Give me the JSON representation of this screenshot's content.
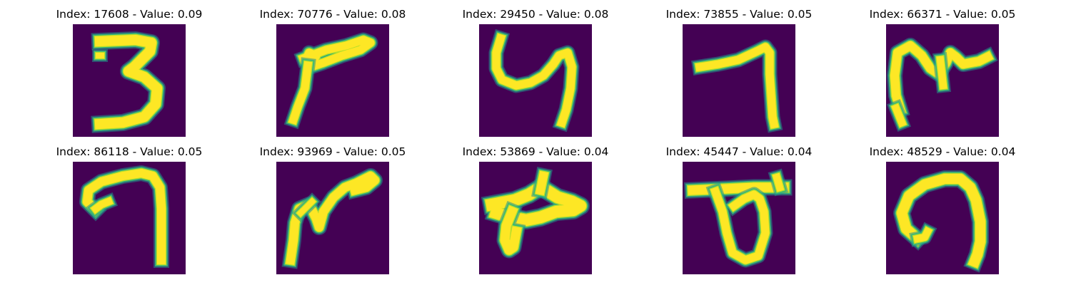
{
  "chart_data": {
    "type": "image-grid",
    "colormap": "viridis",
    "colors": {
      "background": "#440154",
      "stroke_core": "#fde725",
      "stroke_mid": "#b5de2b",
      "stroke_edge": "#35b779",
      "stroke_outer": "#21918c"
    },
    "panels": [
      {
        "index": 17608,
        "value": 0.09,
        "title": "Index: 17608 - Value: 0.09",
        "glyph": "digit 3"
      },
      {
        "index": 70776,
        "value": 0.08,
        "title": "Index: 70776 - Value: 0.08",
        "glyph": "stroke shape"
      },
      {
        "index": 29450,
        "value": 0.08,
        "title": "Index: 29450 - Value: 0.08",
        "glyph": "digit 4-like"
      },
      {
        "index": 73855,
        "value": 0.05,
        "title": "Index: 73855 - Value: 0.05",
        "glyph": "digit 7"
      },
      {
        "index": 66371,
        "value": 0.05,
        "title": "Index: 66371 - Value: 0.05",
        "glyph": "stroke shape"
      },
      {
        "index": 86118,
        "value": 0.05,
        "title": "Index: 86118 - Value: 0.05",
        "glyph": "stroke shape"
      },
      {
        "index": 93969,
        "value": 0.05,
        "title": "Index: 93969 - Value: 0.05",
        "glyph": "stroke shape"
      },
      {
        "index": 53869,
        "value": 0.04,
        "title": "Index: 53869 - Value: 0.04",
        "glyph": "stroke shape"
      },
      {
        "index": 45447,
        "value": 0.04,
        "title": "Index: 45447 - Value: 0.04",
        "glyph": "stroke shape"
      },
      {
        "index": 48529,
        "value": 0.04,
        "title": "Index: 48529 - Value: 0.04",
        "glyph": "stroke shape"
      }
    ]
  }
}
